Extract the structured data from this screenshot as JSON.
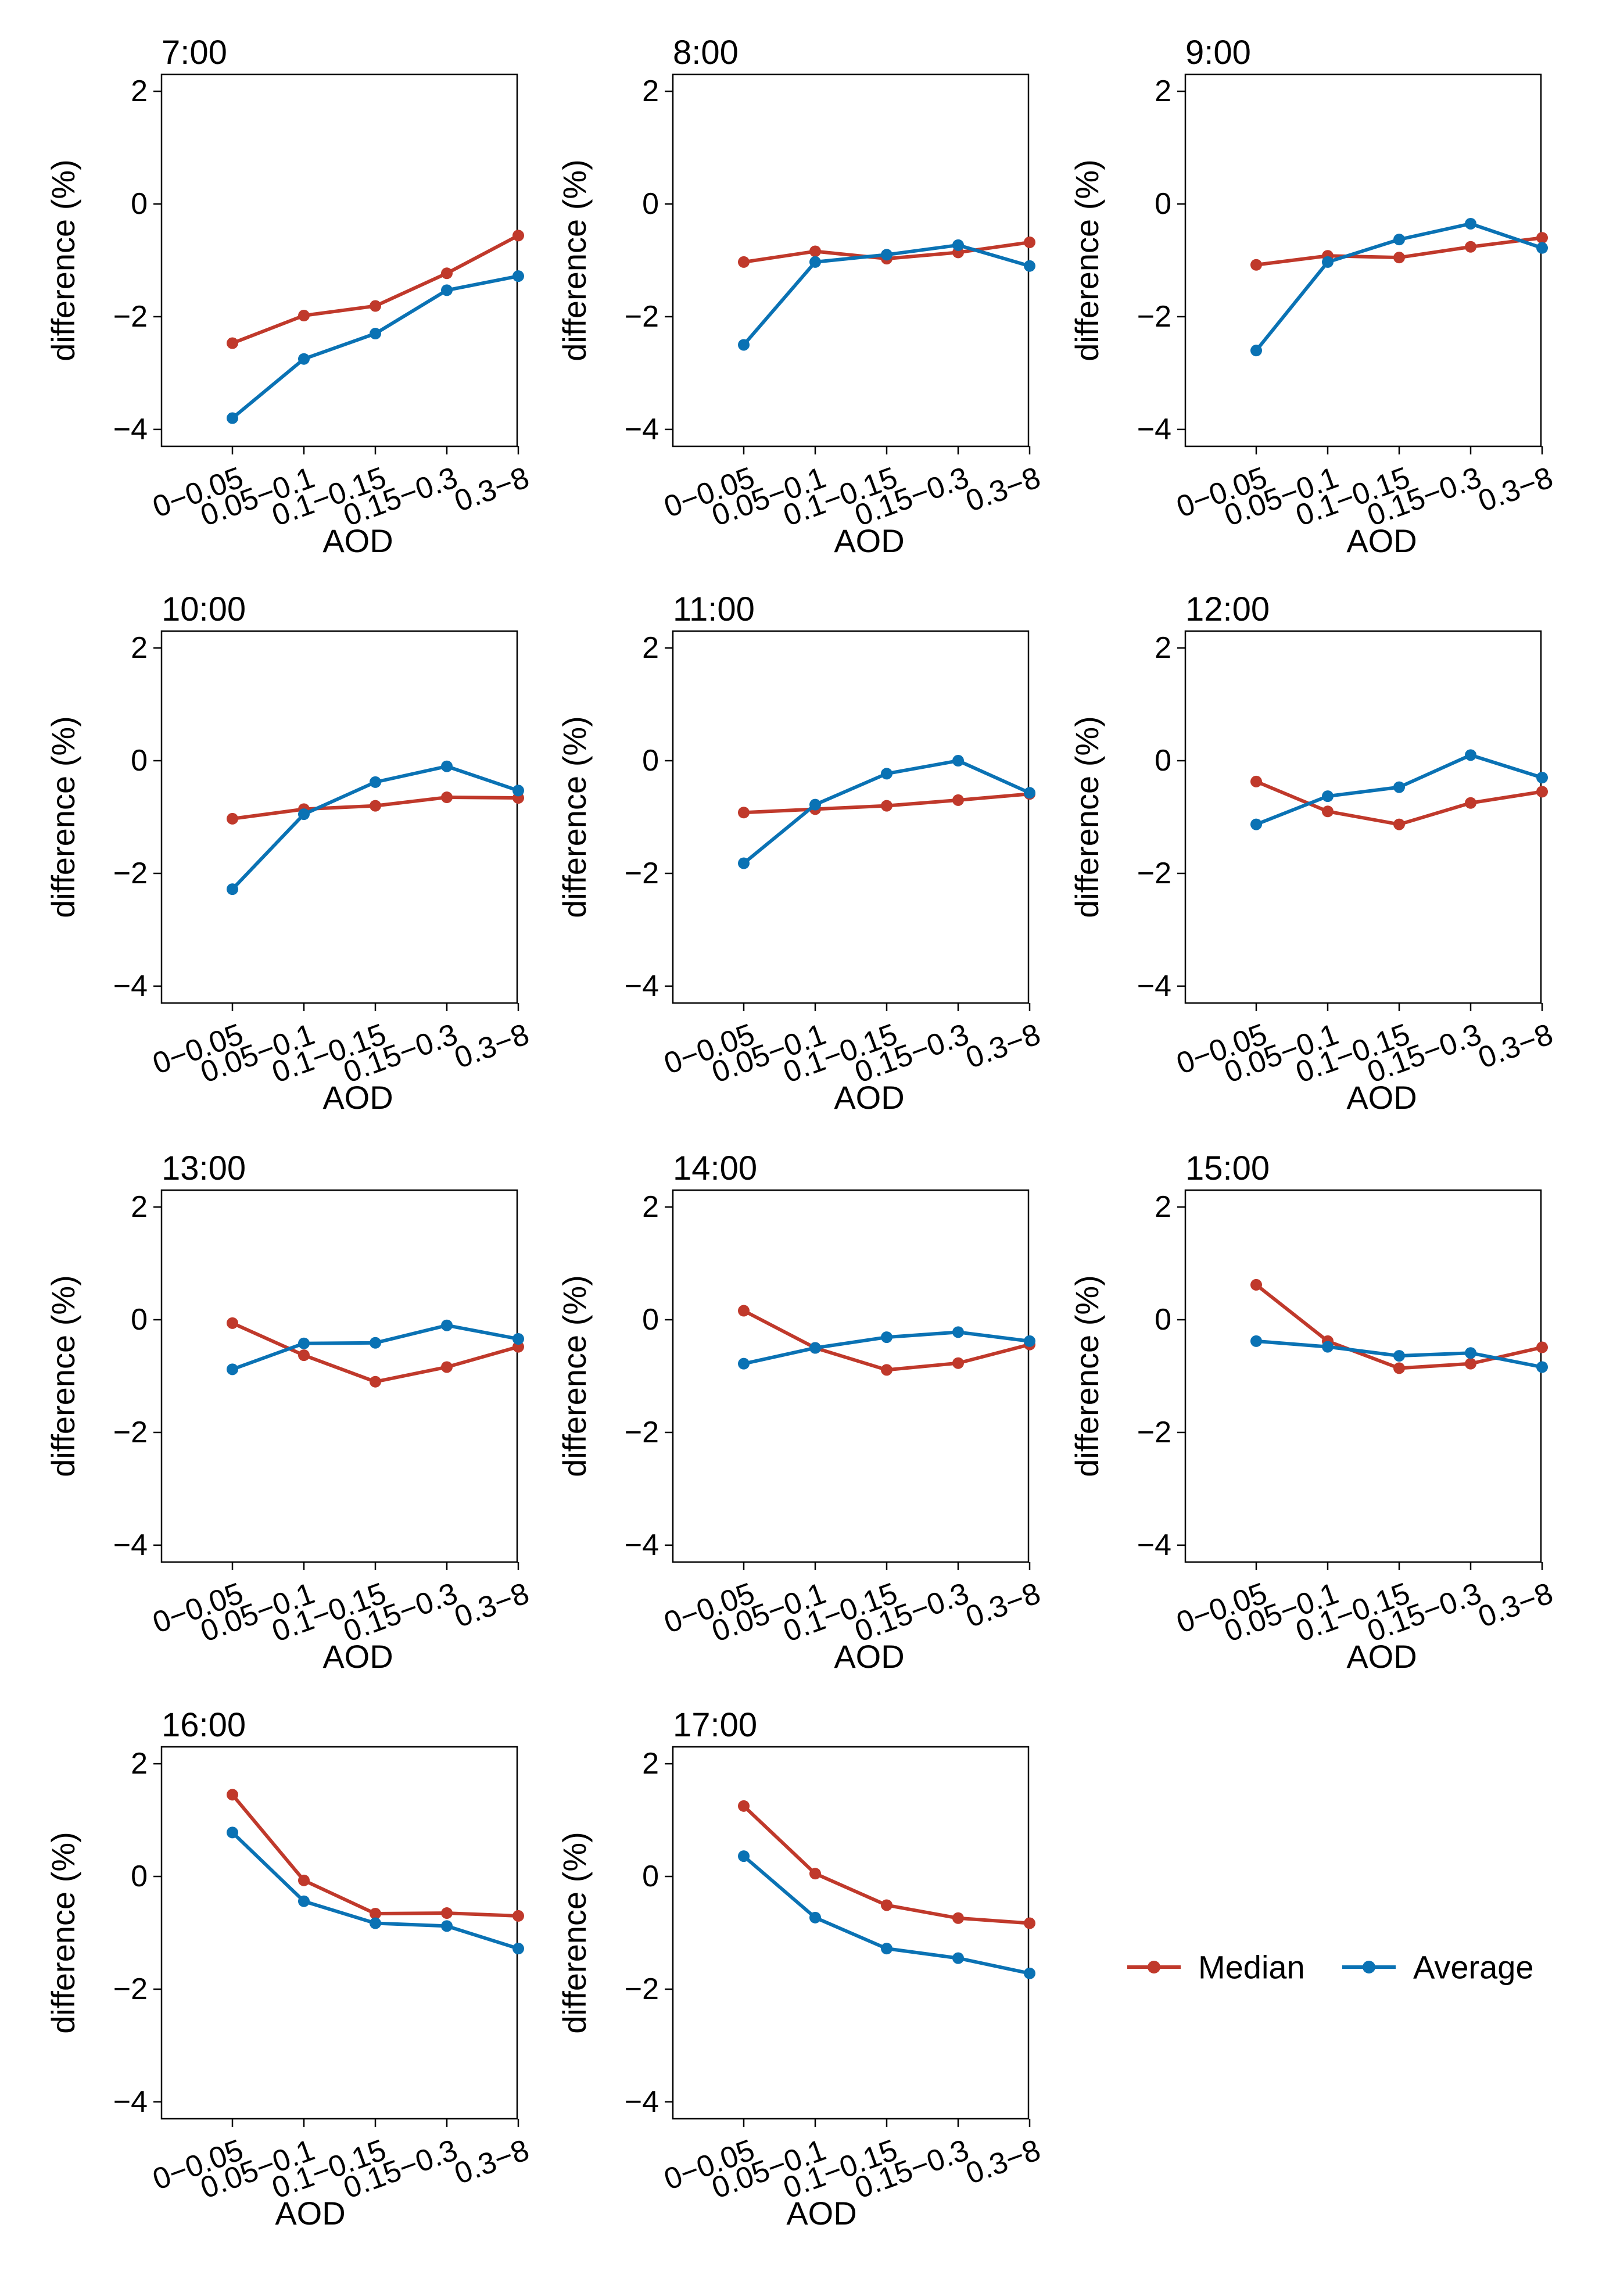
{
  "chart_data": {
    "type": "line",
    "layout": "4x3 grid of small-multiple line charts",
    "categories": [
      "0−0.05",
      "0.05−0.1",
      "0.1−0.15",
      "0.15−0.3",
      "0.3−8"
    ],
    "xlabel": "AOD",
    "ylabel": "difference (%)",
    "ylim": [
      -4.3,
      2.3
    ],
    "yticks": [
      2,
      0,
      -2,
      -4
    ],
    "ytick_labels": [
      "2",
      "0",
      "−2",
      "−4"
    ],
    "colors": {
      "Median": "#c0392b",
      "Average": "#0a72b4"
    },
    "legend": {
      "position": "bottom-right",
      "entries": [
        "Median",
        "Average"
      ]
    },
    "panels": [
      {
        "title": "7:00",
        "series": [
          {
            "name": "Median",
            "values": [
              -2.47,
              -1.98,
              -1.81,
              -1.23,
              -0.56
            ]
          },
          {
            "name": "Average",
            "values": [
              -3.8,
              -2.75,
              -2.3,
              -1.53,
              -1.28
            ]
          }
        ]
      },
      {
        "title": "8:00",
        "series": [
          {
            "name": "Median",
            "values": [
              -1.03,
              -0.84,
              -0.97,
              -0.86,
              -0.68
            ]
          },
          {
            "name": "Average",
            "values": [
              -2.5,
              -1.03,
              -0.9,
              -0.73,
              -1.1
            ]
          }
        ]
      },
      {
        "title": "9:00",
        "series": [
          {
            "name": "Median",
            "values": [
              -1.08,
              -0.92,
              -0.95,
              -0.76,
              -0.6
            ]
          },
          {
            "name": "Average",
            "values": [
              -2.6,
              -1.03,
              -0.63,
              -0.35,
              -0.78
            ]
          }
        ]
      },
      {
        "title": "10:00",
        "series": [
          {
            "name": "Median",
            "values": [
              -1.03,
              -0.86,
              -0.8,
              -0.65,
              -0.66
            ]
          },
          {
            "name": "Average",
            "values": [
              -2.28,
              -0.95,
              -0.38,
              -0.1,
              -0.53
            ]
          }
        ]
      },
      {
        "title": "11:00",
        "series": [
          {
            "name": "Median",
            "values": [
              -0.92,
              -0.86,
              -0.8,
              -0.7,
              -0.59
            ]
          },
          {
            "name": "Average",
            "values": [
              -1.82,
              -0.78,
              -0.23,
              0.0,
              -0.57
            ]
          }
        ]
      },
      {
        "title": "12:00",
        "series": [
          {
            "name": "Median",
            "values": [
              -0.37,
              -0.9,
              -1.13,
              -0.75,
              -0.55
            ]
          },
          {
            "name": "Average",
            "values": [
              -1.13,
              -0.63,
              -0.47,
              0.1,
              -0.3
            ]
          }
        ]
      },
      {
        "title": "13:00",
        "series": [
          {
            "name": "Median",
            "values": [
              -0.06,
              -0.63,
              -1.1,
              -0.84,
              -0.48
            ]
          },
          {
            "name": "Average",
            "values": [
              -0.88,
              -0.42,
              -0.41,
              -0.1,
              -0.34
            ]
          }
        ]
      },
      {
        "title": "14:00",
        "series": [
          {
            "name": "Median",
            "values": [
              0.16,
              -0.5,
              -0.89,
              -0.77,
              -0.44
            ]
          },
          {
            "name": "Average",
            "values": [
              -0.78,
              -0.5,
              -0.31,
              -0.22,
              -0.38
            ]
          }
        ]
      },
      {
        "title": "15:00",
        "series": [
          {
            "name": "Median",
            "values": [
              0.62,
              -0.38,
              -0.86,
              -0.78,
              -0.49
            ]
          },
          {
            "name": "Average",
            "values": [
              -0.38,
              -0.48,
              -0.64,
              -0.59,
              -0.84
            ]
          }
        ]
      },
      {
        "title": "16:00",
        "series": [
          {
            "name": "Median",
            "values": [
              1.45,
              -0.07,
              -0.66,
              -0.65,
              -0.7
            ]
          },
          {
            "name": "Average",
            "values": [
              0.78,
              -0.44,
              -0.83,
              -0.88,
              -1.28
            ]
          }
        ]
      },
      {
        "title": "17:00",
        "series": [
          {
            "name": "Median",
            "values": [
              1.25,
              0.05,
              -0.51,
              -0.74,
              -0.83
            ]
          },
          {
            "name": "Average",
            "values": [
              0.36,
              -0.73,
              -1.28,
              -1.45,
              -1.72
            ]
          }
        ]
      }
    ]
  }
}
